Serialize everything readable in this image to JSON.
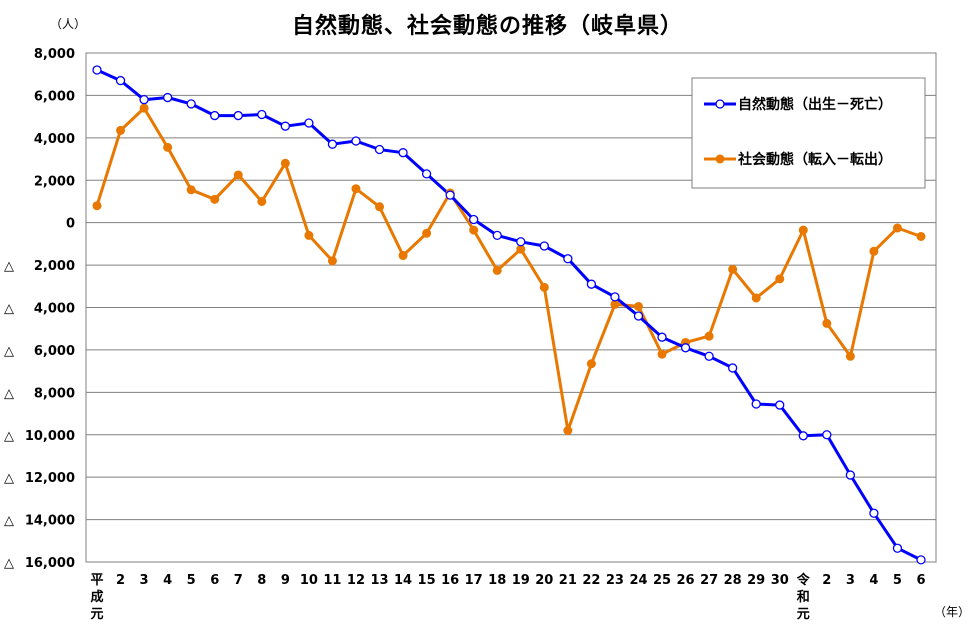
{
  "chart_data": {
    "type": "line",
    "title": "自然動態、社会動態の推移（岐阜県）",
    "y_unit": "（人）",
    "x_unit": "（年）",
    "ylim": [
      -16000,
      8000
    ],
    "y_ticks": [
      8000,
      6000,
      4000,
      2000,
      0,
      -2000,
      -4000,
      -6000,
      -8000,
      -10000,
      -12000,
      -14000,
      -16000
    ],
    "y_tick_labels": [
      "8,000",
      "6,000",
      "4,000",
      "2,000",
      "0",
      "△　2,000",
      "△　4,000",
      "△　6,000",
      "△　8,000",
      "△　10,000",
      "△　12,000",
      "△　14,000",
      "△　16,000"
    ],
    "categories": [
      "平成元",
      "2",
      "3",
      "4",
      "5",
      "6",
      "7",
      "8",
      "9",
      "10",
      "11",
      "12",
      "13",
      "14",
      "15",
      "16",
      "17",
      "18",
      "19",
      "20",
      "21",
      "22",
      "23",
      "24",
      "25",
      "26",
      "27",
      "28",
      "29",
      "30",
      "令和元",
      "2",
      "3",
      "4",
      "5",
      "6"
    ],
    "legend_position": "top-right",
    "grid": true,
    "series": [
      {
        "name": "自然動態（出生－死亡）",
        "color": "#0000ff",
        "marker": "open-circle",
        "values": [
          7200,
          6700,
          5800,
          5900,
          5600,
          5050,
          5050,
          5100,
          4550,
          4700,
          3700,
          3850,
          3450,
          3300,
          2300,
          1300,
          150,
          -600,
          -900,
          -1100,
          -1700,
          -2900,
          -3500,
          -4400,
          -5400,
          -5900,
          -6300,
          -6850,
          -8550,
          -8600,
          -10050,
          -10000,
          -11900,
          -13700,
          -15350,
          -15900
        ]
      },
      {
        "name": "社会動態（転入－転出）",
        "color": "#e87800",
        "marker": "filled-circle",
        "values": [
          800,
          4350,
          5400,
          3550,
          1550,
          1100,
          2250,
          1000,
          2800,
          -600,
          -1800,
          1600,
          750,
          -1550,
          -500,
          1400,
          -350,
          -2250,
          -1250,
          -3050,
          -9800,
          -6650,
          -3850,
          -3950,
          -6200,
          -5650,
          -5350,
          -2200,
          -3550,
          -2650,
          -350,
          -4750,
          -6300,
          -1350,
          -250,
          -650
        ]
      }
    ]
  }
}
